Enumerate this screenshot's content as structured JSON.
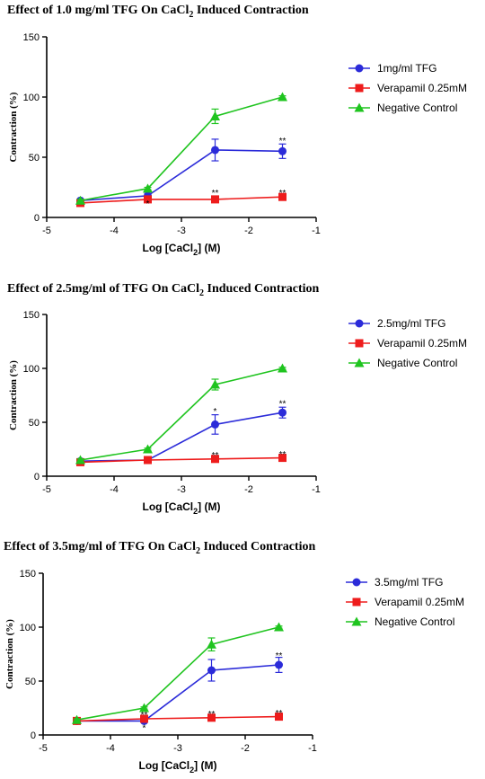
{
  "colors": {
    "tfg": "#2b2bd9",
    "verapamil": "#ee1c1c",
    "control": "#1fc41f"
  },
  "chart_data": [
    {
      "type": "line",
      "title": "Effect of 1.0 mg/ml TFG On CaCl",
      "title_sub": "2",
      "title_rest": " Induced Contraction",
      "ylabel": "Contraction (%)",
      "xlabel": "Log [CaCl",
      "xlabel_sub": "2",
      "xlabel_rest": "] (M)",
      "xlim": [
        -5,
        -1
      ],
      "ylim": [
        0,
        150
      ],
      "xticks": [
        "-5",
        "-4",
        "-3",
        "-2",
        "-1"
      ],
      "yticks": [
        "0",
        "50",
        "100",
        "150"
      ],
      "legend_position": "top-right",
      "x": [
        -4.5,
        -3.5,
        -2.5,
        -1.5
      ],
      "series": [
        {
          "name": "1mg/ml TFG",
          "key": "tfg",
          "marker": "circle",
          "values": [
            14,
            18,
            56,
            55
          ],
          "errors": [
            1,
            2,
            9,
            6
          ]
        },
        {
          "name": "Verapamil 0.25mM",
          "key": "verapamil",
          "marker": "square",
          "values": [
            12,
            15,
            15,
            17
          ],
          "errors": [
            1,
            1,
            1,
            2
          ]
        },
        {
          "name": "Negative Control",
          "key": "control",
          "marker": "triangle",
          "values": [
            14,
            24,
            84,
            100
          ],
          "errors": [
            1,
            1,
            6,
            1
          ]
        }
      ],
      "annotations": [
        {
          "x": -3.5,
          "y": 12,
          "text": "*"
        },
        {
          "x": -2.5,
          "y": 21,
          "text": "**"
        },
        {
          "x": -1.5,
          "y": 21,
          "text": "**"
        },
        {
          "x": -1.5,
          "y": 64,
          "text": "**"
        }
      ]
    },
    {
      "type": "line",
      "title": "Effect of 2.5mg/ml  of TFG On CaCl",
      "title_sub": "2",
      "title_rest": " Induced Contraction",
      "ylabel": "Contraction (%)",
      "xlabel": "Log [CaCl",
      "xlabel_sub": "2",
      "xlabel_rest": "] (M)",
      "xlim": [
        -5,
        -1
      ],
      "ylim": [
        0,
        150
      ],
      "xticks": [
        "-5",
        "-4",
        "-3",
        "-2",
        "-1"
      ],
      "yticks": [
        "0",
        "50",
        "100",
        "150"
      ],
      "legend_position": "top-right",
      "x": [
        -4.5,
        -3.5,
        -2.5,
        -1.5
      ],
      "series": [
        {
          "name": "2.5mg/ml TFG",
          "key": "tfg",
          "marker": "circle",
          "values": [
            14,
            15,
            48,
            59
          ],
          "errors": [
            1,
            1,
            9,
            5
          ]
        },
        {
          "name": "Verapamil 0.25mM",
          "key": "verapamil",
          "marker": "square",
          "values": [
            13,
            15,
            16,
            17
          ],
          "errors": [
            1,
            1,
            1,
            2
          ]
        },
        {
          "name": "Negative Control",
          "key": "control",
          "marker": "triangle",
          "values": [
            15,
            25,
            85,
            100
          ],
          "errors": [
            1,
            1,
            5,
            1
          ]
        }
      ],
      "annotations": [
        {
          "x": -2.5,
          "y": 20,
          "text": "**"
        },
        {
          "x": -2.5,
          "y": 61,
          "text": "*"
        },
        {
          "x": -1.5,
          "y": 21,
          "text": "**"
        },
        {
          "x": -1.5,
          "y": 68,
          "text": "**"
        }
      ]
    },
    {
      "type": "line",
      "title": "Effect of 3.5mg/ml of TFG On CaCl",
      "title_sub": "2",
      "title_rest": " Induced Contraction",
      "ylabel": "Contraction (%)",
      "xlabel": "Log [CaCl",
      "xlabel_sub": "2",
      "xlabel_rest": "] (M)",
      "xlim": [
        -5,
        -1
      ],
      "ylim": [
        0,
        150
      ],
      "xticks": [
        "-5",
        "-4",
        "-3",
        "-2",
        "-1"
      ],
      "yticks": [
        "0",
        "50",
        "100",
        "150"
      ],
      "legend_position": "top-right",
      "x": [
        -4.5,
        -3.5,
        -2.5,
        -1.5
      ],
      "series": [
        {
          "name": "3.5mg/ml TFG",
          "key": "tfg",
          "marker": "circle",
          "values": [
            13,
            13,
            60,
            65
          ],
          "errors": [
            1,
            1,
            10,
            7
          ]
        },
        {
          "name": "Verapamil 0.25mM",
          "key": "verapamil",
          "marker": "square",
          "values": [
            13,
            15,
            16,
            17
          ],
          "errors": [
            1,
            1,
            1,
            2
          ]
        },
        {
          "name": "Negative Control",
          "key": "control",
          "marker": "triangle",
          "values": [
            14,
            25,
            84,
            100
          ],
          "errors": [
            1,
            1,
            6,
            1
          ]
        }
      ],
      "annotations": [
        {
          "x": -3.5,
          "y": 7,
          "text": "*"
        },
        {
          "x": -3.5,
          "y": 19,
          "text": "**"
        },
        {
          "x": -2.5,
          "y": 20,
          "text": "**"
        },
        {
          "x": -1.5,
          "y": 21,
          "text": "**"
        },
        {
          "x": -1.5,
          "y": 74,
          "text": "**"
        }
      ]
    }
  ]
}
